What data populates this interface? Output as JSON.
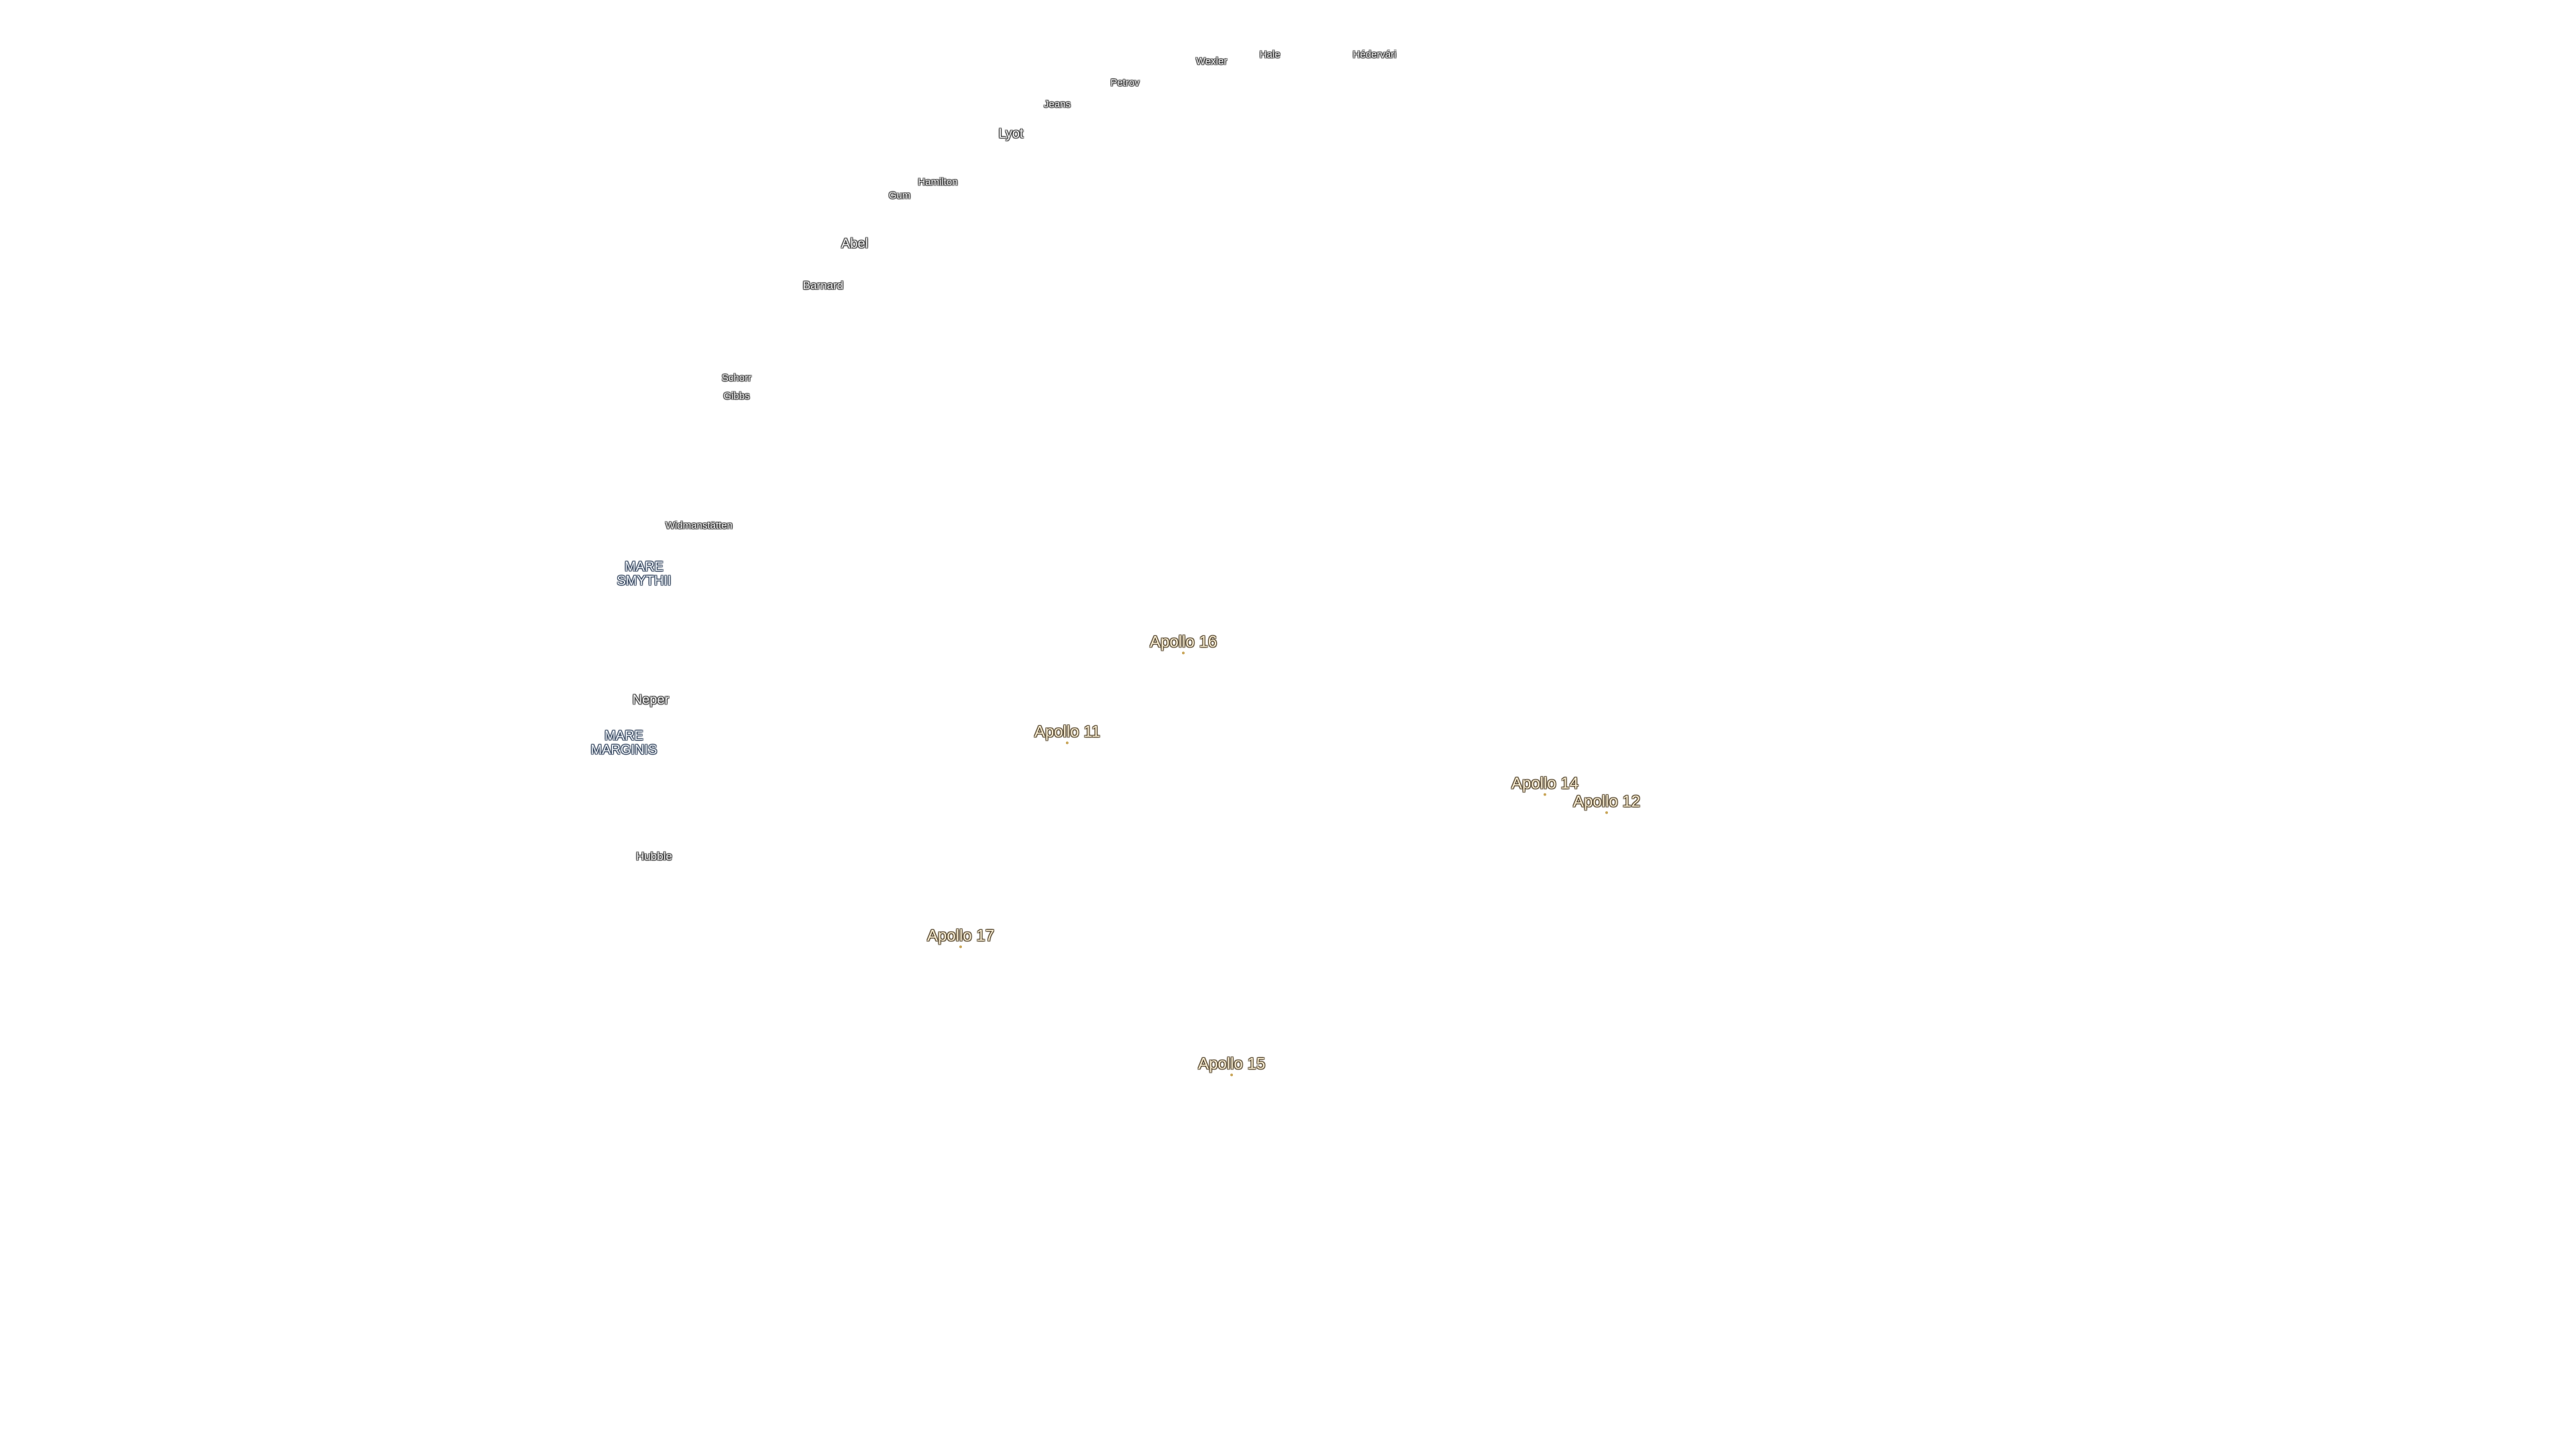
{
  "craters": [
    "Wexler",
    "Hale",
    "Hédervári",
    "Petrov",
    "Jeans",
    "Lyot",
    "Hamilton",
    "Gum",
    "Abel",
    "Barnard",
    "Schorr",
    "Gibbs",
    "Widmanstätten",
    "Neper",
    "Hubble"
  ],
  "maria": [
    "MARE SMYTHII",
    "MARE MARGINIS"
  ],
  "landing_sites": [
    "Apollo 16",
    "Apollo 11",
    "Apollo 14",
    "Apollo 12",
    "Apollo 17",
    "Apollo 15"
  ]
}
